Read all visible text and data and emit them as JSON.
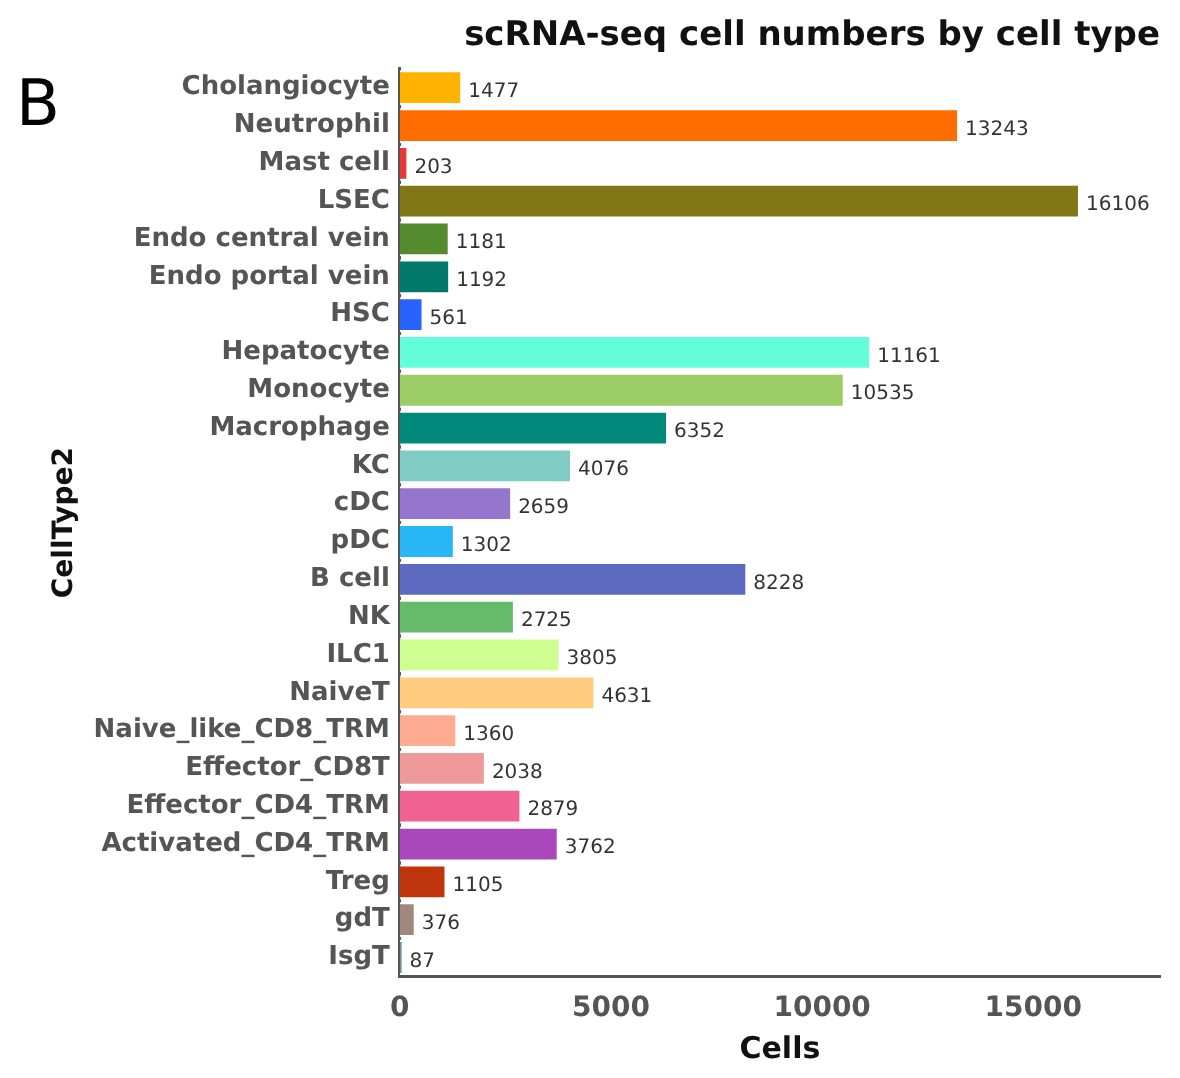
{
  "chart_data": {
    "type": "bar",
    "orientation": "horizontal",
    "title": "scRNA-seq cell numbers by cell type",
    "xlabel": "Cells",
    "ylabel": "CellType2",
    "annotations": [
      "B"
    ],
    "categories": [
      "Cholangiocyte",
      "Neutrophil",
      "Mast cell",
      "LSEC",
      "Endo central vein",
      "Endo portal vein",
      "HSC",
      "Hepatocyte",
      "Monocyte",
      "Macrophage",
      "KC",
      "cDC",
      "pDC",
      "B cell",
      "NK",
      "ILC1",
      "NaiveT",
      "Naive_like_CD8_TRM",
      "Effector_CD8T",
      "Effector_CD4_TRM",
      "Activated_CD4_TRM",
      "Treg",
      "gdT",
      "IsgT"
    ],
    "values": [
      1477,
      13243,
      203,
      16106,
      1181,
      1192,
      561,
      11161,
      10535,
      6352,
      4076,
      2659,
      1302,
      8228,
      2725,
      3805,
      4631,
      1360,
      2038,
      2879,
      3762,
      1105,
      376,
      87
    ],
    "colors": [
      "#ffb300",
      "#ff6d00",
      "#e53935",
      "#827717",
      "#558b2f",
      "#00796b",
      "#2962ff",
      "#64ffda",
      "#9ccc65",
      "#00897b",
      "#80cbc4",
      "#9575cd",
      "#29b6f6",
      "#5c6bc0",
      "#66bb6a",
      "#ccff90",
      "#ffcc80",
      "#ffab91",
      "#ef9a9a",
      "#f06292",
      "#ab47bc",
      "#bf360c",
      "#a1887f",
      "#78909c"
    ],
    "data_labels": true,
    "xlim": [
      0,
      18000
    ],
    "xticks": [
      0,
      5000,
      10000,
      15000
    ],
    "grid": false,
    "legend": false
  }
}
